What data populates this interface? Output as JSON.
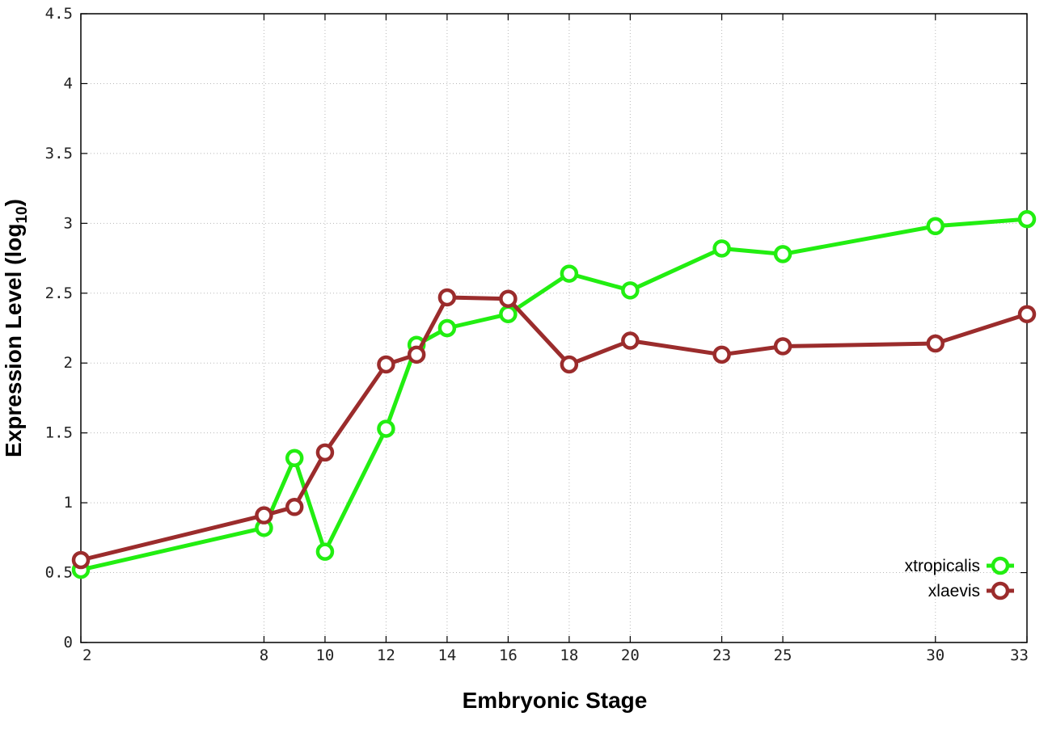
{
  "chart_data": {
    "type": "line",
    "xlabel": "Embryonic Stage",
    "ylabel_main": "Expression Level (log",
    "ylabel_sub": "10",
    "ylabel_close": ")",
    "x_ticks": [
      2,
      8,
      10,
      12,
      14,
      16,
      18,
      20,
      23,
      25,
      30,
      33
    ],
    "y_ticks": [
      "0",
      "0.5",
      "1",
      "1.5",
      "2",
      "2.5",
      "3",
      "3.5",
      "4",
      "4.5"
    ],
    "ylim": [
      0,
      4.5
    ],
    "grid": true,
    "legend_position": "bottom-right",
    "series": [
      {
        "name": "xtropicalis",
        "color": "#22ee11",
        "points": [
          {
            "x": 2,
            "y": 0.52
          },
          {
            "x": 8,
            "y": 0.82
          },
          {
            "x": 9,
            "y": 1.32
          },
          {
            "x": 10,
            "y": 0.65
          },
          {
            "x": 12,
            "y": 1.53
          },
          {
            "x": 13,
            "y": 2.13
          },
          {
            "x": 14,
            "y": 2.25
          },
          {
            "x": 16,
            "y": 2.35
          },
          {
            "x": 18,
            "y": 2.64
          },
          {
            "x": 20,
            "y": 2.52
          },
          {
            "x": 23,
            "y": 2.82
          },
          {
            "x": 25,
            "y": 2.78
          },
          {
            "x": 30,
            "y": 2.98
          },
          {
            "x": 33,
            "y": 3.03
          }
        ]
      },
      {
        "name": "xlaevis",
        "color": "#9b2c2c",
        "points": [
          {
            "x": 2,
            "y": 0.59
          },
          {
            "x": 8,
            "y": 0.91
          },
          {
            "x": 9,
            "y": 0.97
          },
          {
            "x": 10,
            "y": 1.36
          },
          {
            "x": 12,
            "y": 1.99
          },
          {
            "x": 13,
            "y": 2.06
          },
          {
            "x": 14,
            "y": 2.47
          },
          {
            "x": 16,
            "y": 2.46
          },
          {
            "x": 18,
            "y": 1.99
          },
          {
            "x": 20,
            "y": 2.16
          },
          {
            "x": 23,
            "y": 2.06
          },
          {
            "x": 25,
            "y": 2.12
          },
          {
            "x": 30,
            "y": 2.14
          },
          {
            "x": 33,
            "y": 2.35
          }
        ]
      }
    ]
  }
}
